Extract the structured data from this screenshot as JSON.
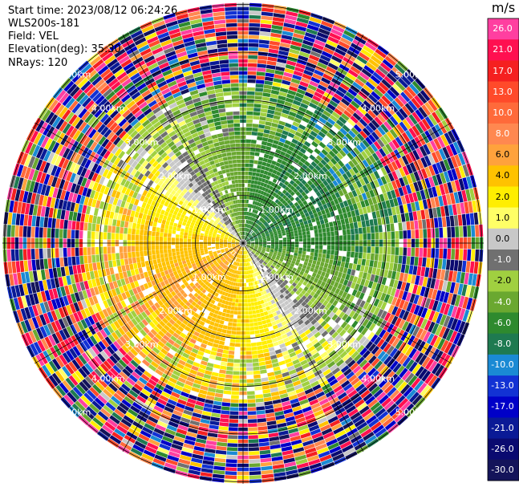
{
  "header": {
    "start_time_label": "Start time: 2023/08/12 06:24:26",
    "instrument": "WLS200s-181",
    "field": "Field: VEL",
    "elevation": "Elevation(deg): 35.30",
    "nrays": "NRays: 120"
  },
  "colorbar": {
    "unit": "m/s",
    "labels": [
      "26.0",
      "21.0",
      "17.0",
      "13.0",
      "10.0",
      "8.0",
      "6.0",
      "4.0",
      "2.0",
      "1.0",
      "0.0",
      "-1.0",
      "-2.0",
      "-4.0",
      "-6.0",
      "-8.0",
      "-10.0",
      "-13.0",
      "-17.0",
      "-21.0",
      "-26.0",
      "-30.0"
    ],
    "colors": [
      "#ff3fa0",
      "#ff1050",
      "#f52020",
      "#ff4a2a",
      "#ff6a3a",
      "#ff8850",
      "#ffa23c",
      "#ffc200",
      "#ffee00",
      "#ffff66",
      "#c8c8c8",
      "#707070",
      "#a0d040",
      "#6aa830",
      "#2e8a2e",
      "#1e7a50",
      "#1a8ad4",
      "#1232d4",
      "#0000c8",
      "#0a1a96",
      "#0a0a70",
      "#14145a"
    ]
  },
  "chart_data": {
    "type": "ppi",
    "field": "VEL",
    "units": "m/s",
    "nrays": 120,
    "elevation_deg": 35.3,
    "ring_labels": [
      "1.00km",
      "2.00km",
      "3.00km",
      "4.00km",
      "5.00km"
    ],
    "ring_distances_km": [
      1,
      2,
      3,
      4,
      5
    ],
    "colorbar_bounds": [
      -30.0,
      -26.0,
      -21.0,
      -17.0,
      -13.0,
      -10.0,
      -8.0,
      -6.0,
      -4.0,
      -2.0,
      -1.0,
      0.0,
      1.0,
      2.0,
      4.0,
      6.0,
      8.0,
      10.0,
      13.0,
      17.0,
      21.0,
      26.0
    ]
  }
}
